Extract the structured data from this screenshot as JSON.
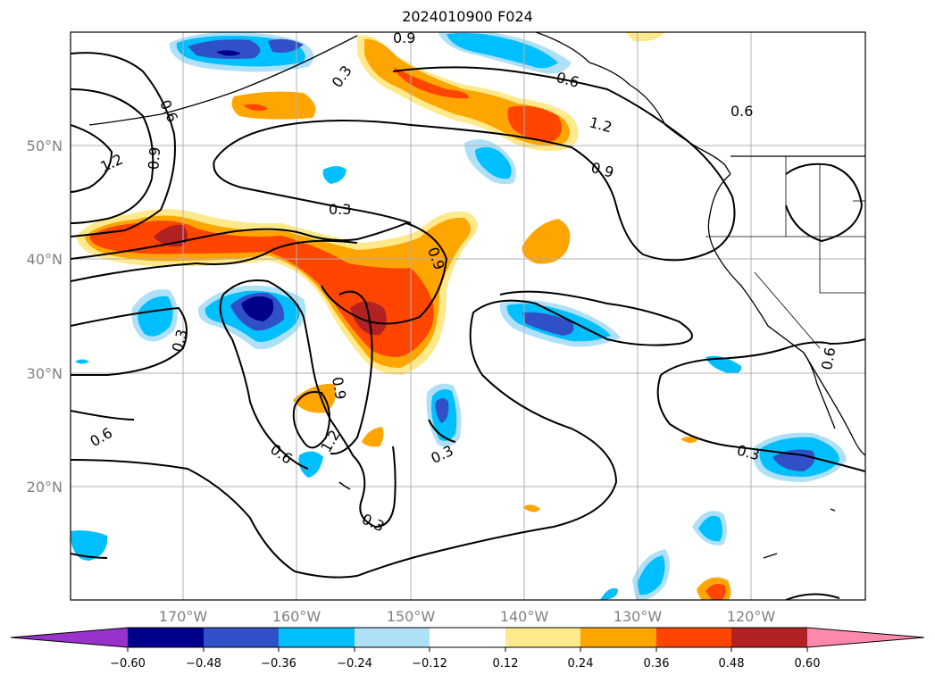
{
  "title": "2024010900 F024",
  "latitude_labels": [
    "50°N",
    "40°N",
    "30°N",
    "20°N"
  ],
  "longitude_labels": [
    "170°W",
    "160°W",
    "150°W",
    "140°W",
    "130°W",
    "120°W"
  ],
  "contour_labels": [
    "0.9",
    "0.3",
    "0.6",
    "0.6",
    "0.6",
    "1.2",
    "0.9",
    "0.9",
    "1.2",
    "0.3",
    "0.9",
    "0.3",
    "0.6",
    "0.6",
    "0.9",
    "1.2",
    "0.3",
    "0.3",
    "0.3",
    "0.6"
  ],
  "colorbar": {
    "tick_labels": [
      "−0.60",
      "−0.48",
      "−0.36",
      "−0.24",
      "−0.12",
      "0.12",
      "0.24",
      "0.36",
      "0.48",
      "0.60"
    ],
    "colors": [
      "#9932cc",
      "#00008b",
      "#3050c8",
      "#00bfff",
      "#aee0f8",
      "#ffffff",
      "#ffe98a",
      "#ffa500",
      "#ff4500",
      "#b22222",
      "#ff89ad"
    ]
  },
  "colors": {
    "gridline": "#b0b0b0",
    "coastline": "#000000",
    "contour": "#000000"
  }
}
